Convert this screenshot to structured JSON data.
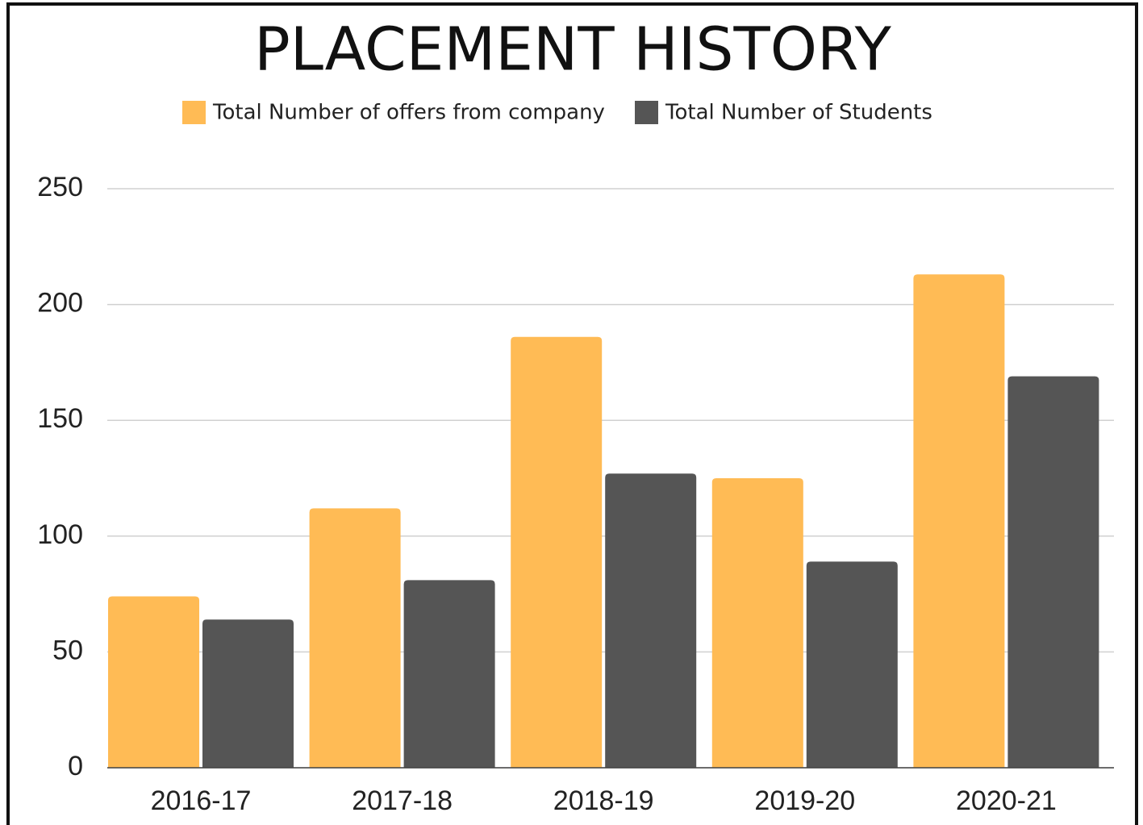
{
  "chart_data": {
    "type": "bar",
    "title": "PLACEMENT HISTORY",
    "categories": [
      "2016-17",
      "2017-18",
      "2018-19",
      "2019-20",
      "2020-21"
    ],
    "series": [
      {
        "name": "Total Number of offers from company",
        "color": "#ffbb55",
        "values": [
          74,
          112,
          186,
          125,
          213
        ]
      },
      {
        "name": "Total Number of Students",
        "color": "#555555",
        "values": [
          64,
          81,
          127,
          89,
          169
        ]
      }
    ],
    "ylim": [
      0,
      250
    ],
    "yticks": [
      0,
      50,
      100,
      150,
      200,
      250
    ],
    "grid": true,
    "legend": "top"
  }
}
